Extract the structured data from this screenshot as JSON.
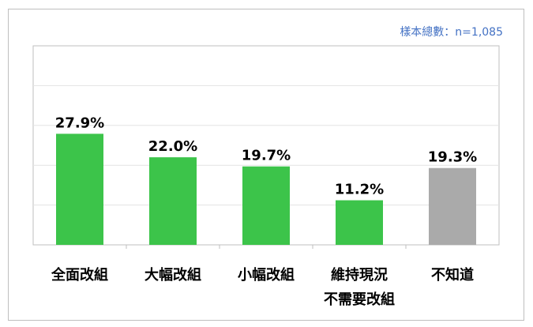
{
  "sample_note": "樣本總數：n=1,085",
  "chart_data": {
    "type": "bar",
    "categories": [
      [
        "全面改組"
      ],
      [
        "大幅改組"
      ],
      [
        "小幅改組"
      ],
      [
        "維持現況",
        "不需要改組"
      ],
      [
        "不知道"
      ]
    ],
    "values": [
      27.9,
      22.0,
      19.7,
      11.2,
      19.3
    ],
    "value_labels": [
      "27.9%",
      "22.0%",
      "19.7%",
      "11.2%",
      "19.3%"
    ],
    "colors": [
      "#3cc44a",
      "#3cc44a",
      "#3cc44a",
      "#3cc44a",
      "#aaaaaa"
    ],
    "ylim": [
      0,
      50
    ],
    "grid": true,
    "title": "",
    "xlabel": "",
    "ylabel": ""
  }
}
